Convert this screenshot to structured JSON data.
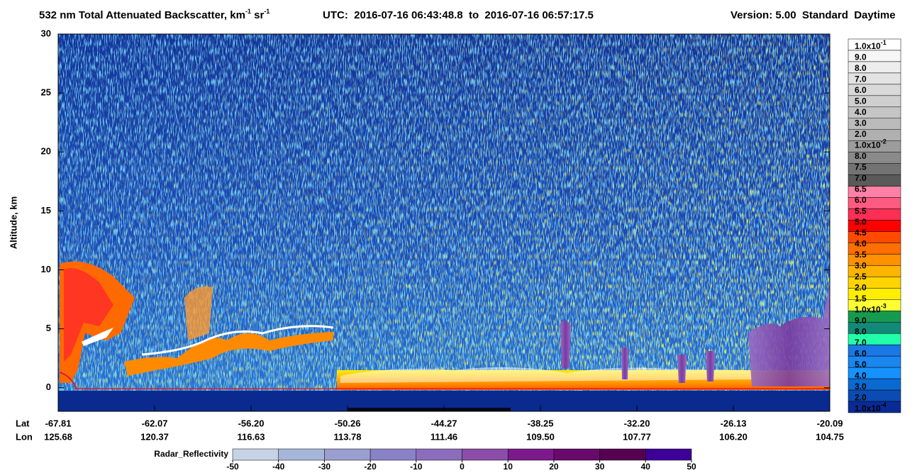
{
  "chart_data": {
    "type": "curtain",
    "title_parts": [
      {
        "text": "532 nm Total Attenuated Backscatter, km",
        "sup": "-1"
      },
      {
        "text": " sr",
        "sup": "-1"
      }
    ],
    "time_range": "UTC:  2016-07-16 06:43:48.8  to  2016-07-16 06:57:17.5",
    "version": "Version: 5.00  Standard  Daytime",
    "y_label": "Altitude, km",
    "ylim": [
      -2,
      30
    ],
    "yticks": [
      0,
      5,
      10,
      15,
      20,
      25,
      30
    ],
    "x_rows": [
      {
        "name": "Lat",
        "labels": [
          "-67.81",
          "-62.07",
          "-56.20",
          "-50.26",
          "-44.27",
          "-38.25",
          "-32.20",
          "-26.13",
          "-20.09"
        ]
      },
      {
        "name": "Lon",
        "labels": [
          "125.68",
          "120.37",
          "116.63",
          "113.78",
          "111.46",
          "109.50",
          "107.77",
          "106.20",
          "104.75"
        ]
      }
    ],
    "colorbar": {
      "labels": [
        {
          "text": "1.0x10",
          "sup": "-1"
        },
        "9.0",
        "8.0",
        "7.0",
        "6.0",
        "5.0",
        "4.0",
        "3.0",
        "2.0",
        {
          "text": "1.0x10",
          "sup": "-2"
        },
        "8.0",
        "7.5",
        "7.0",
        "6.5",
        "6.0",
        "5.5",
        "5.0",
        "4.5",
        "4.0",
        "3.5",
        "3.0",
        "2.5",
        "2.0",
        "1.5",
        {
          "text": "1.0x10",
          "sup": "-3"
        },
        "9.0",
        "8.0",
        "7.0",
        "6.0",
        "5.0",
        "4.0",
        "3.0",
        "2.0",
        {
          "text": "1.0x10",
          "sup": "-4"
        }
      ],
      "colors": [
        "#ffffff",
        "#f6f6f6",
        "#ededed",
        "#e3e3e3",
        "#d9d9d9",
        "#cfcfcf",
        "#c5c5c5",
        "#bbbbbb",
        "#b0b0b0",
        "#9c9c9c",
        "#8a8a8a",
        "#737373",
        "#5a5a5a",
        "#ff80a6",
        "#ff5a80",
        "#ff2e55",
        "#ff0000",
        "#ff4a00",
        "#ff6e00",
        "#ff9000",
        "#ffb400",
        "#ffd400",
        "#ffee00",
        "#ffff33",
        "#169a50",
        "#128a78",
        "#22ffaa",
        "#1a78e6",
        "#1a86f0",
        "#1592ff",
        "#0a6ad2",
        "#0a4cb4",
        "#0a2a96"
      ]
    },
    "radar_colorbar": {
      "name": "Radar_Reflectivity",
      "xlim": [
        -50,
        50
      ],
      "ticks": [
        -50,
        -40,
        -30,
        -20,
        -10,
        0,
        10,
        20,
        30,
        40,
        50
      ],
      "colors": [
        "#c6d2e6",
        "#a6b6d8",
        "#9a9ed0",
        "#8a82c6",
        "#8c6cbc",
        "#8a4ea8",
        "#7c1a8c",
        "#680a6c",
        "#560052",
        "#3c0096"
      ]
    }
  }
}
